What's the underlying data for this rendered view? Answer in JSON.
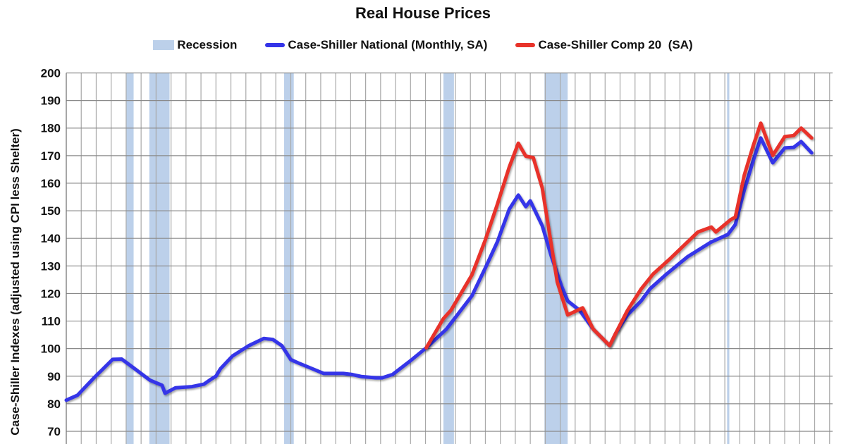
{
  "chart_data": {
    "type": "line",
    "title": "Real House Prices",
    "ylabel": "Case-Shiller Indexes (adjusted using CPI less Shelter)",
    "xlabel": "",
    "xlim": [
      1976,
      2027.2
    ],
    "ylim": [
      70,
      200
    ],
    "yticks": [
      "70",
      "80",
      "90",
      "100",
      "110",
      "120",
      "130",
      "140",
      "150",
      "160",
      "170",
      "180",
      "190",
      "200"
    ],
    "grid": true,
    "legend_position": "top",
    "recession_label": "Recession",
    "recession_color": "#bcd0ea",
    "recessions": [
      [
        1980.0,
        1980.5
      ],
      [
        1981.55,
        1982.9
      ],
      [
        1990.55,
        1991.2
      ],
      [
        2001.2,
        2001.9
      ],
      [
        2007.95,
        2009.5
      ],
      [
        2020.15,
        2020.3
      ]
    ],
    "series": [
      {
        "name": "Case-Shiller National (Monthly, SA)",
        "color": "#3434e8",
        "x": [
          1976.0,
          1976.75,
          1977.85,
          1979.1,
          1979.7,
          1980.5,
          1981.6,
          1982.4,
          1982.6,
          1983.3,
          1984.4,
          1985.2,
          1985.7,
          1986.0,
          1986.3,
          1987.1,
          1988.2,
          1989.2,
          1989.8,
          1990.4,
          1991.0,
          1991.5,
          1992.3,
          1993.2,
          1994.5,
          1995.1,
          1995.7,
          1996.7,
          1997.1,
          1997.8,
          1998.9,
          2000.05,
          2001.4,
          2003.1,
          2004.0,
          2004.8,
          2005.6,
          2006.2,
          2006.7,
          2007.0,
          2007.8,
          2008.4,
          2009.1,
          2009.5,
          2010.3,
          2011.2,
          2012.3,
          2012.7,
          2013.5,
          2014.4,
          2015.0,
          2016.1,
          2017.5,
          2019.1,
          2020.2,
          2020.7,
          2021.3,
          2021.9,
          2022.4,
          2023.2,
          2024.0,
          2024.6,
          2025.1,
          2025.8
        ],
        "y": [
          81.3,
          83.1,
          89.4,
          96.1,
          96.2,
          93.0,
          88.5,
          86.7,
          83.8,
          85.8,
          86.2,
          87.1,
          89.0,
          90.0,
          92.7,
          97.3,
          101.1,
          103.7,
          103.3,
          101.1,
          96.0,
          94.8,
          93.0,
          91.0,
          91.0,
          90.6,
          89.9,
          89.4,
          89.4,
          90.6,
          95.2,
          100.3,
          107.1,
          119.1,
          129.3,
          138.7,
          150.6,
          155.7,
          151.5,
          153.6,
          144.6,
          133.6,
          122.5,
          117.3,
          113.9,
          107.1,
          101.1,
          105.5,
          112.2,
          117.3,
          121.7,
          127.0,
          133.3,
          138.7,
          141.4,
          145.0,
          157.5,
          168.3,
          176.4,
          167.4,
          172.8,
          173.0,
          175.1,
          171.0
        ]
      },
      {
        "name": "Case-Shiller Comp 20  (SA)",
        "color": "#e8332a",
        "x": [
          2000.05,
          2001.2,
          2001.7,
          2003.1,
          2004.0,
          2004.8,
          2005.6,
          2006.2,
          2006.7,
          2007.2,
          2007.8,
          2008.8,
          2009.5,
          2010.5,
          2011.2,
          2012.3,
          2012.7,
          2013.5,
          2014.4,
          2015.2,
          2016.3,
          2018.2,
          2019.1,
          2019.4,
          2020.4,
          2020.7,
          2021.3,
          2021.9,
          2022.4,
          2023.2,
          2024.0,
          2024.6,
          2025.1,
          2025.8
        ],
        "y": [
          100.3,
          110.9,
          113.9,
          126.7,
          139.5,
          152.3,
          165.9,
          174.5,
          169.8,
          169.3,
          158.3,
          124.2,
          112.2,
          114.8,
          107.1,
          101.1,
          105.5,
          113.9,
          121.6,
          127.0,
          132.4,
          142.3,
          144.1,
          142.3,
          146.8,
          147.7,
          162.9,
          173.7,
          181.8,
          170.1,
          176.9,
          177.3,
          180.0,
          176.4
        ]
      }
    ]
  }
}
